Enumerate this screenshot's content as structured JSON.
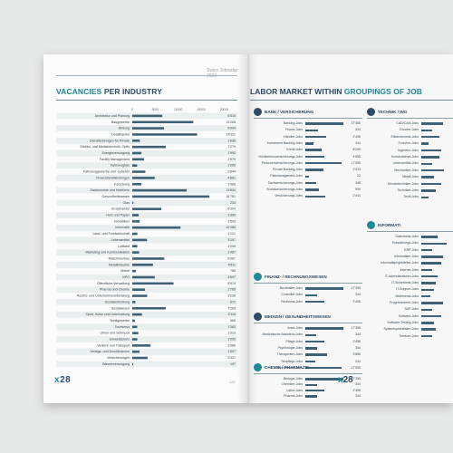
{
  "left_page": {
    "header": "Swiss Jobradar 2023",
    "title_accent": "VACANCIES",
    "title_rest": "PER INDUSTRY",
    "footer_logo_x": "x",
    "footer_logo_num": "28",
    "footer_code": "x28"
  },
  "chart_data": {
    "type": "bar",
    "orientation": "horizontal",
    "title": "VACANCIES PER INDUSTRY",
    "x_ticks": [
      "0",
      "5000",
      "10000",
      "15000",
      "20000"
    ],
    "xlim": [
      0,
      20000
    ],
    "categories": [
      "Architektur und Planung",
      "Baugewerbe",
      "Bildung",
      "Detailhandel",
      "Dienstleistungen für Private",
      "Elektro- und Medizintechnik, Optik",
      "Energieversorgung",
      "Facility Management",
      "Fahrzeugbau",
      "Fahrzeuggewerbe und -zubehör",
      "Finanzdienstleistungen",
      "Forschung",
      "Gastronomie und Hotellerie",
      "Gesundheitswesen",
      "Glas",
      "Grosshandel",
      "Holz und Papier",
      "Immobilien",
      "Informatik",
      "Land- und Forstwirtschaft",
      "Lebensmittel",
      "Luftfahrt",
      "Marketing und Kommunikation",
      "Maschinenbau",
      "Metallindustrie",
      "Möbel",
      "NPO",
      "Öffentliche Verwaltung",
      "Pharma und Chemie",
      "Rechts- und Unternehmensberatung",
      "Sozialeinrichtung",
      "Sozialwesen",
      "Sport, Kultur und Unterhaltung",
      "Textilgewerbe",
      "Tourismus",
      "Uhren und Schmuck",
      "Umweltschutz",
      "Verkehr und Transport",
      "Verlags- und Druckbranche",
      "Versicherungen",
      "Wasserversorgung"
    ],
    "labels": [
      "6'518",
      "13'265",
      "6'904",
      "14'112",
      "1'636",
      "7'279",
      "1'992",
      "2'579",
      "1'050",
      "2'844",
      "4'881",
      "1'988",
      "11'834",
      "16'781",
      "234",
      "6'304",
      "1'399",
      "1'593",
      "10'484",
      "1'121",
      "3'197",
      "1'099",
      "1'487",
      "6'967",
      "4'511",
      "785",
      "4'897",
      "8'974",
      "2'765",
      "3'238",
      "671",
      "7'269",
      "2'118",
      "566",
      "1'082",
      "1'313",
      "1'092",
      "3'986",
      "1'557",
      "3'337",
      "197"
    ],
    "values": [
      6518,
      13265,
      6904,
      14112,
      1636,
      7279,
      1992,
      2579,
      1050,
      2844,
      4881,
      1988,
      11834,
      16781,
      234,
      6304,
      1399,
      1593,
      10484,
      1121,
      3197,
      1099,
      1487,
      6967,
      4511,
      785,
      4897,
      8974,
      2765,
      3238,
      671,
      7269,
      2118,
      566,
      1082,
      1313,
      1092,
      3986,
      1557,
      3337,
      197
    ],
    "bar_color": "#3d6277",
    "grid": false
  },
  "right_page": {
    "title_rest": "LABOR MARKET WITHIN",
    "title_accent": "GROUPINGS OF JOB",
    "footer_logo_x": "x",
    "footer_logo_num": "28",
    "sections": [
      {
        "heading": "BANK / VERSICHERUNG",
        "rows": [
          {
            "label": "Banking-Jobs",
            "value": "17'355",
            "frac": 1.0
          },
          {
            "label": "Finanz-Jobs",
            "value": "344",
            "frac": 0.33
          },
          {
            "label": "Händler-Jobs",
            "value": "2'456",
            "frac": 0.55
          },
          {
            "label": "Investment Banking-Jobs",
            "value": "344",
            "frac": 0.22
          },
          {
            "label": "Kredit-Jobs",
            "value": "8'269",
            "frac": 0.42
          },
          {
            "label": "Nichtlebensversicherungs Jobs",
            "value": "4'555",
            "frac": 0.5
          },
          {
            "label": "Personenversicherungs-Jobs",
            "value": "17'555",
            "frac": 0.95
          },
          {
            "label": "Private Banking-Jobs",
            "value": "2'333",
            "frac": 0.48
          },
          {
            "label": "Riskmanagement-Jobs",
            "value": "22",
            "frac": 0.1
          },
          {
            "label": "Sachversicherungs-Jobs",
            "value": "345",
            "frac": 0.28
          },
          {
            "label": "Sozialversicherungs-Jobs",
            "value": "999",
            "frac": 0.36
          },
          {
            "label": "Versicherungs-Jobs",
            "value": "2'444",
            "frac": 0.52
          }
        ]
      },
      {
        "heading": "FINANZ- / RECHNUNGSWESEN",
        "rows": [
          {
            "label": "Buchhalter-Jobs",
            "value": "17'355",
            "frac": 1.0
          },
          {
            "label": "Controller-Jobs",
            "value": "344",
            "frac": 0.3
          },
          {
            "label": "Revisions-Jobs",
            "value": "2'456",
            "frac": 0.5
          }
        ]
      },
      {
        "heading": "MEDIZIN / GESUNDHEITSWESEN",
        "rows": [
          {
            "label": "Arzte-Jobs",
            "value": "17'355",
            "frac": 1.0
          },
          {
            "label": "Medizinische Assistenz-Jobs",
            "value": "344",
            "frac": 0.28
          },
          {
            "label": "Pflege-Jobs",
            "value": "2'456",
            "frac": 0.5
          },
          {
            "label": "Psychologie-Jobs",
            "value": "344",
            "frac": 0.3
          },
          {
            "label": "Therapeuten-Jobs",
            "value": "3'566",
            "frac": 0.58
          },
          {
            "label": "Tierpflege-Jobs",
            "value": "244",
            "frac": 0.26
          },
          {
            "label": "Zahnmedizin-Jobs",
            "value": "17'555",
            "frac": 0.95
          }
        ]
      },
      {
        "heading": "CHEMIE / PHARMAZIE",
        "rows": [
          {
            "label": "Biologie-Jobs",
            "value": "17'355",
            "frac": 1.0
          },
          {
            "label": "Chemiker-Jobs",
            "value": "344",
            "frac": 0.3
          },
          {
            "label": "Labor-Jobs",
            "value": "2'456",
            "frac": 0.5
          },
          {
            "label": "Pharma-Jobs",
            "value": "344",
            "frac": 0.3
          }
        ]
      },
      {
        "heading": "TECHNIK / ING",
        "rows": [
          {
            "label": "CAD/CAM-Jobs",
            "value": "",
            "frac": 0.6
          },
          {
            "label": "Drucker-Jobs",
            "value": "",
            "frac": 0.3
          },
          {
            "label": "Elektrotechnik-Jobs",
            "value": "",
            "frac": 0.5
          },
          {
            "label": "Forscher-Jobs",
            "value": "",
            "frac": 0.2
          },
          {
            "label": "Ingenieur-Jobs",
            "value": "",
            "frac": 0.55
          },
          {
            "label": "Konstrukteurs-Jobs",
            "value": "",
            "frac": 0.5
          },
          {
            "label": "Lebensmittel-Jobs",
            "value": "",
            "frac": 0.3
          },
          {
            "label": "Mechaniker-Jobs",
            "value": "",
            "frac": 0.62
          },
          {
            "label": "Metall-Jobs",
            "value": "",
            "frac": 0.35
          },
          {
            "label": "Servicetechniker-Jobs",
            "value": "",
            "frac": 0.55
          },
          {
            "label": "Techniker-Jobs",
            "value": "",
            "frac": 0.4
          },
          {
            "label": "Textil-Jobs",
            "value": "",
            "frac": 0.2
          }
        ]
      },
      {
        "heading": "INFORMATI",
        "rows": [
          {
            "label": "Datenbank-Jobs",
            "value": "",
            "frac": 0.45
          },
          {
            "label": "Entwicklungs-Jobs",
            "value": "",
            "frac": 0.7
          },
          {
            "label": "ERP-Jobs",
            "value": "",
            "frac": 0.3
          },
          {
            "label": "Informatiker-Jobs",
            "value": "",
            "frac": 0.6
          },
          {
            "label": "Informatikprojektleiter-Jobs",
            "value": "",
            "frac": 0.55
          },
          {
            "label": "Internet-Jobs",
            "value": "",
            "frac": 0.3
          },
          {
            "label": "IT-Administratoren-Jobs",
            "value": "",
            "frac": 0.45
          },
          {
            "label": "IT-Sicherheits-Jobs",
            "value": "",
            "frac": 0.4
          },
          {
            "label": "IT-Support-Jobs",
            "value": "",
            "frac": 0.35
          },
          {
            "label": "Multimedia-Jobs",
            "value": "",
            "frac": 0.25
          },
          {
            "label": "Programmierer-Jobs",
            "value": "",
            "frac": 0.6
          },
          {
            "label": "SAP-Jobs",
            "value": "",
            "frac": 0.3
          },
          {
            "label": "Software-Jobs",
            "value": "",
            "frac": 0.55
          },
          {
            "label": "Software-Testing-Jobs",
            "value": "",
            "frac": 0.35
          },
          {
            "label": "Systemspezialisten-Jobs",
            "value": "",
            "frac": 0.4
          },
          {
            "label": "Telekom-Jobs",
            "value": "",
            "frac": 0.3
          }
        ]
      }
    ]
  }
}
